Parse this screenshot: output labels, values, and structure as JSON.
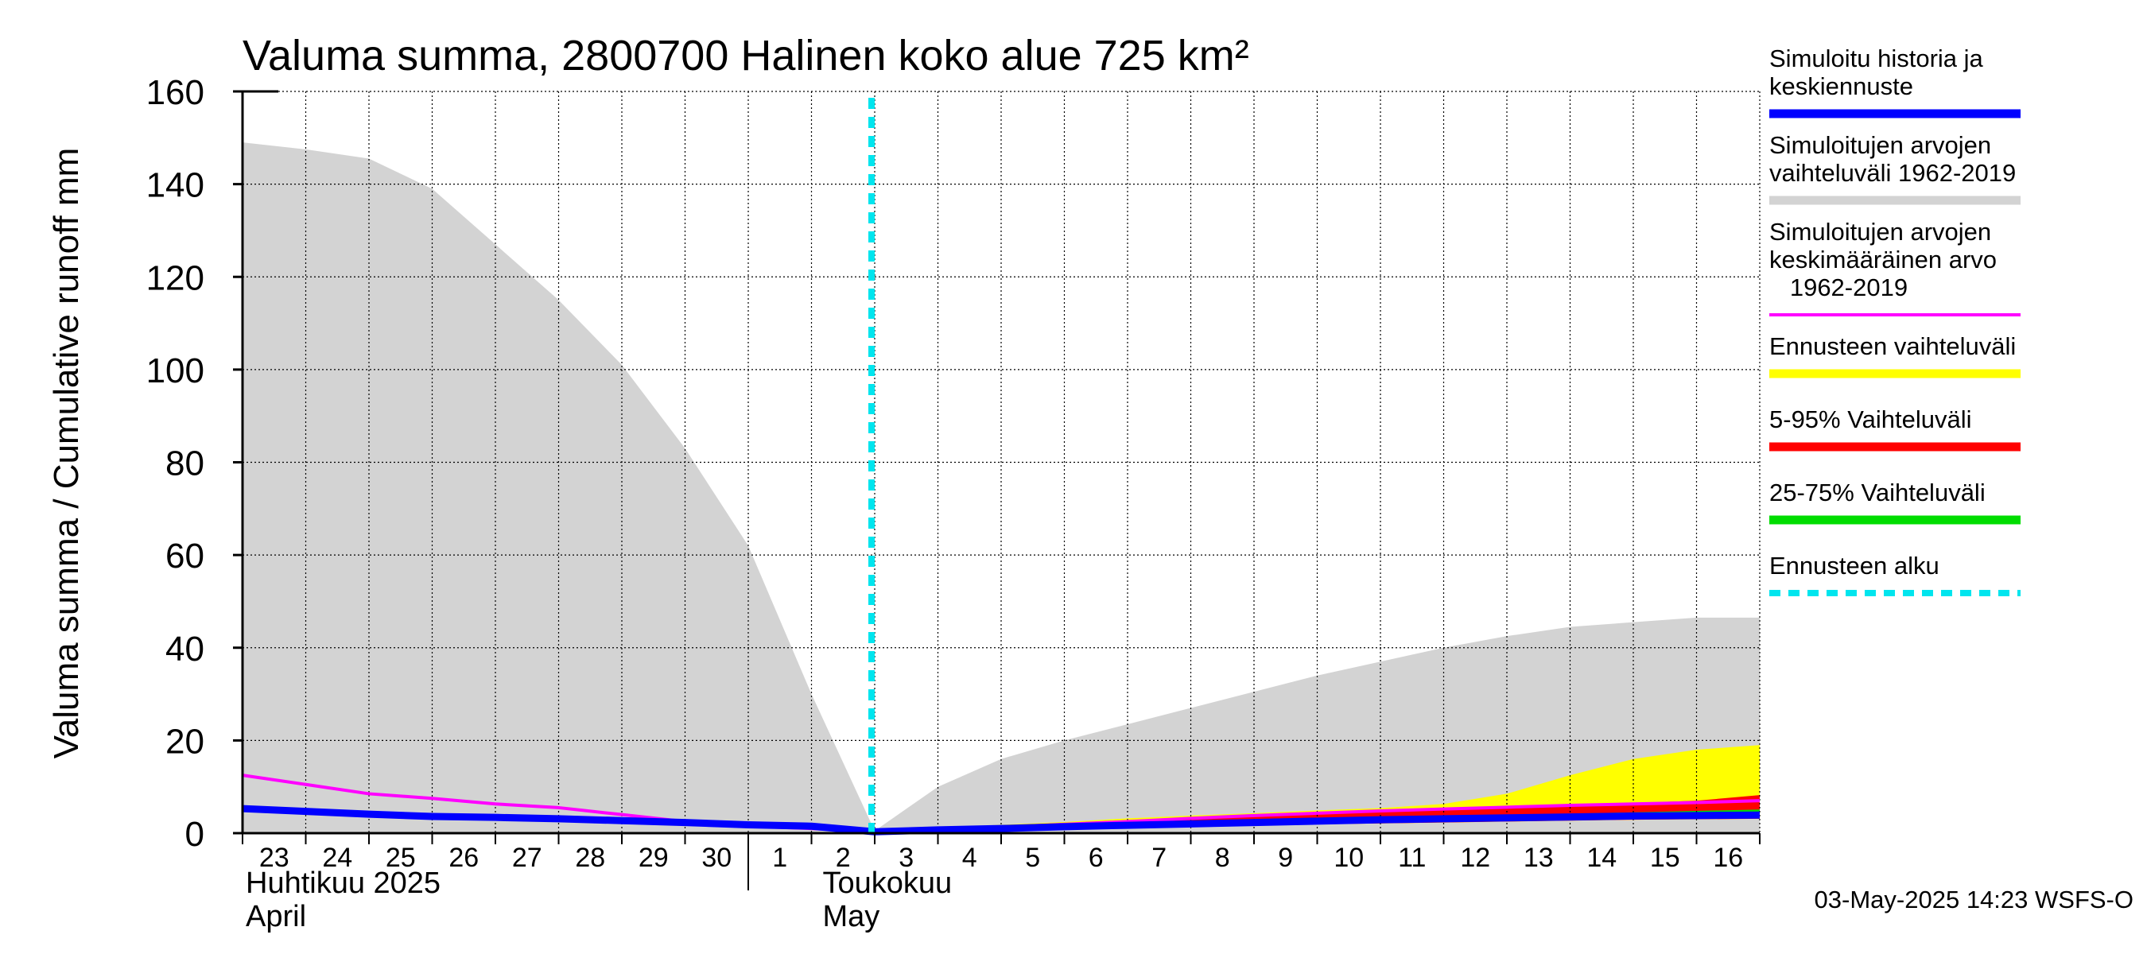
{
  "chart_data": {
    "type": "area",
    "title": "Valuma summa, 2800700 Halinen koko alue 725 km²",
    "ylabel": "Valuma summa / Cumulative runoff    mm",
    "ylim": [
      0,
      160
    ],
    "yticks": [
      0,
      20,
      40,
      60,
      80,
      100,
      120,
      140,
      160
    ],
    "grid": true,
    "x_dates": [
      "2025-04-23",
      "2025-04-24",
      "2025-04-25",
      "2025-04-26",
      "2025-04-27",
      "2025-04-28",
      "2025-04-29",
      "2025-04-30",
      "2025-05-01",
      "2025-05-02",
      "2025-05-03",
      "2025-05-04",
      "2025-05-05",
      "2025-05-06",
      "2025-05-07",
      "2025-05-08",
      "2025-05-09",
      "2025-05-10",
      "2025-05-11",
      "2025-05-12",
      "2025-05-13",
      "2025-05-14",
      "2025-05-15",
      "2025-05-16",
      "2025-05-17"
    ],
    "x_tick_labels": [
      "23",
      "24",
      "25",
      "26",
      "27",
      "28",
      "29",
      "30",
      "1",
      "2",
      "3",
      "4",
      "5",
      "6",
      "7",
      "8",
      "9",
      "10",
      "11",
      "12",
      "13",
      "14",
      "15",
      "16"
    ],
    "month_labels": [
      {
        "line1": "Huhtikuu  2025",
        "line2": "April"
      },
      {
        "line1": "Toukokuu",
        "line2": "May"
      }
    ],
    "forecast_start": "2025-05-03",
    "series": [
      {
        "name": "Simuloitujen arvojen vaihteluväli 1962-2019",
        "kind": "band",
        "color": "#d3d3d3",
        "upper": [
          149,
          147.5,
          145.5,
          139,
          127,
          115,
          101,
          83,
          62,
          30,
          0.5,
          10,
          16,
          20,
          23.5,
          27,
          30.5,
          34,
          37,
          40,
          42.5,
          44.5,
          45.5,
          46.5,
          46.5
        ],
        "lower": [
          0,
          0,
          0,
          0,
          0,
          0,
          0,
          0,
          0,
          0,
          0,
          0,
          0,
          0,
          0,
          0,
          0,
          0,
          0,
          0,
          0,
          0,
          0,
          0,
          0
        ]
      },
      {
        "name": "Ennusteen vaihteluväli",
        "kind": "band",
        "color": "#ffff00",
        "x_start_index": 10,
        "upper": [
          0.5,
          1.2,
          1.8,
          2.4,
          3.2,
          3.8,
          4.3,
          4.9,
          5.4,
          6.3,
          8.5,
          12.5,
          16,
          18,
          19
        ],
        "lower": [
          0.5,
          0.7,
          0.9,
          1.1,
          1.3,
          1.5,
          1.7,
          1.9,
          2.1,
          2.3,
          2.5,
          2.7,
          2.9,
          3.0,
          3.1
        ]
      },
      {
        "name": "5-95% Vaihteluväli",
        "kind": "band",
        "color": "#ff0000",
        "x_start_index": 10,
        "upper": [
          0.5,
          1.1,
          1.6,
          2.2,
          2.8,
          3.3,
          3.8,
          4.2,
          4.6,
          5.0,
          5.4,
          6.0,
          6.5,
          7.0,
          8.2
        ],
        "lower": [
          0.5,
          0.7,
          0.9,
          1.1,
          1.3,
          1.5,
          1.7,
          1.9,
          2.1,
          2.3,
          2.5,
          2.7,
          2.9,
          3.0,
          3.1
        ]
      },
      {
        "name": "25-75% Vaihteluväli",
        "kind": "band",
        "color": "#00dd00",
        "x_start_index": 10,
        "upper": [
          0.5,
          0.9,
          1.2,
          1.5,
          1.9,
          2.3,
          2.7,
          3.0,
          3.3,
          3.6,
          3.9,
          4.2,
          4.5,
          4.8,
          5.1
        ],
        "lower": [
          0.5,
          0.8,
          1.0,
          1.3,
          1.6,
          1.9,
          2.2,
          2.5,
          2.7,
          2.9,
          3.1,
          3.3,
          3.5,
          3.7,
          3.9
        ]
      },
      {
        "name": "Simuloitujen arvojen keskimääräinen arvo 1962-2019",
        "kind": "line",
        "color": "#ff00ff",
        "values": [
          12.5,
          10.5,
          8.5,
          7.5,
          6.3,
          5.5,
          4,
          2.5,
          1.5,
          1,
          0.3,
          0.8,
          1.3,
          1.9,
          2.5,
          3.2,
          3.8,
          4.3,
          4.8,
          5.2,
          5.6,
          6.0,
          6.3,
          6.6,
          7.0
        ]
      },
      {
        "name": "Simuloitu historia ja keskiennuste",
        "kind": "line",
        "color": "#0000ff",
        "values": [
          5.3,
          4.7,
          4.1,
          3.6,
          3.4,
          3.1,
          2.7,
          2.3,
          1.8,
          1.5,
          0.3,
          0.7,
          1.0,
          1.4,
          1.7,
          2.0,
          2.3,
          2.6,
          2.9,
          3.1,
          3.3,
          3.5,
          3.7,
          3.8,
          3.9
        ]
      }
    ]
  },
  "legend": [
    {
      "lines": [
        "Simuloitu historia ja",
        "keskiennuste"
      ],
      "color": "#0000ff",
      "style": "solid"
    },
    {
      "lines": [
        "Simuloitujen arvojen",
        "vaihteluväli 1962-2019"
      ],
      "color": "#d3d3d3",
      "style": "solid"
    },
    {
      "lines": [
        "Simuloitujen arvojen",
        "keskimääräinen arvo",
        "   1962-2019"
      ],
      "color": "#ff00ff",
      "style": "thin"
    },
    {
      "lines": [
        "Ennusteen vaihteluväli"
      ],
      "color": "#ffff00",
      "style": "solid"
    },
    {
      "lines": [
        "5-95% Vaihteluväli"
      ],
      "color": "#ff0000",
      "style": "solid"
    },
    {
      "lines": [
        "25-75% Vaihteluväli"
      ],
      "color": "#00dd00",
      "style": "solid"
    },
    {
      "lines": [
        "Ennusteen alku"
      ],
      "color": "#00e5ee",
      "style": "dashed"
    }
  ],
  "footer": "03-May-2025 14:23 WSFS-O"
}
